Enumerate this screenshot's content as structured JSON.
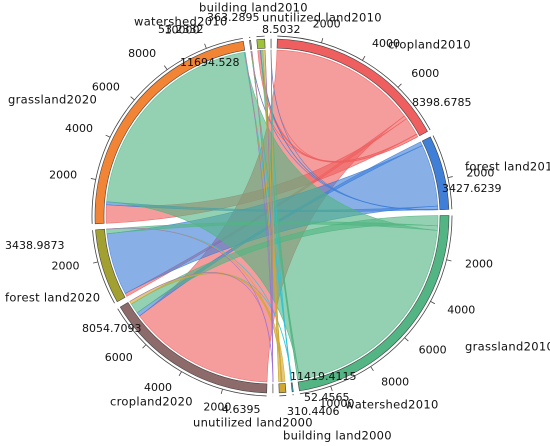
{
  "chart_data": {
    "type": "chord",
    "nodes": [
      {
        "name": "cropland2010",
        "total": 8398.6785,
        "color": "#ef5f5f",
        "ticks": [
          2000,
          4000,
          6000
        ]
      },
      {
        "name": "forest land2010",
        "total": 3427.6239,
        "color": "#3f7fd8",
        "ticks": [
          2000
        ]
      },
      {
        "name": "grassland2010",
        "total": 11419.4115,
        "color": "#52b583",
        "ticks": [
          2000,
          4000,
          6000,
          8000,
          10000
        ]
      },
      {
        "name": "watershed2010",
        "total": 52.4565,
        "color": "#2fc3d3",
        "ticks": []
      },
      {
        "name": "building land2000",
        "total": 310.4406,
        "color": "#d0a830",
        "ticks": []
      },
      {
        "name": "unutilized land2000",
        "total": 4.6395,
        "color": "#9b6fd6",
        "ticks": []
      },
      {
        "name": "cropland2020",
        "total": 8054.7093,
        "color": "#8e6b6b",
        "ticks": [
          2000,
          4000,
          6000
        ]
      },
      {
        "name": "forest land2020",
        "total": 3438.9873,
        "color": "#a3a032",
        "ticks": [
          2000
        ]
      },
      {
        "name": "grassland2020",
        "total": 11694.528,
        "color": "#f28535",
        "ticks": [
          2000,
          4000,
          6000,
          8000,
          10000
        ]
      },
      {
        "name": "watershed2010",
        "total": 53.2332,
        "color": "#bdbdbd",
        "ticks": []
      },
      {
        "name": "building land2010",
        "total": 363.2895,
        "color": "#9fc23c",
        "ticks": []
      },
      {
        "name": "unutilized land2010",
        "total": 8.5032,
        "color": "#7fc0ef",
        "ticks": []
      }
    ],
    "matrix": [
      [
        7200,
        160,
        900,
        8,
        127,
        3.6785
      ],
      [
        200,
        3050,
        150,
        2,
        25,
        0.6239
      ],
      [
        500,
        220,
        10600,
        5,
        90.2107,
        4.2008
      ],
      [
        5,
        5,
        30,
        12.4565,
        0,
        0
      ],
      [
        149.7093,
        3.9873,
        14.528,
        25.7767,
        116.4393,
        0
      ],
      [
        0,
        0,
        0,
        0,
        4.6395,
        0
      ]
    ]
  }
}
